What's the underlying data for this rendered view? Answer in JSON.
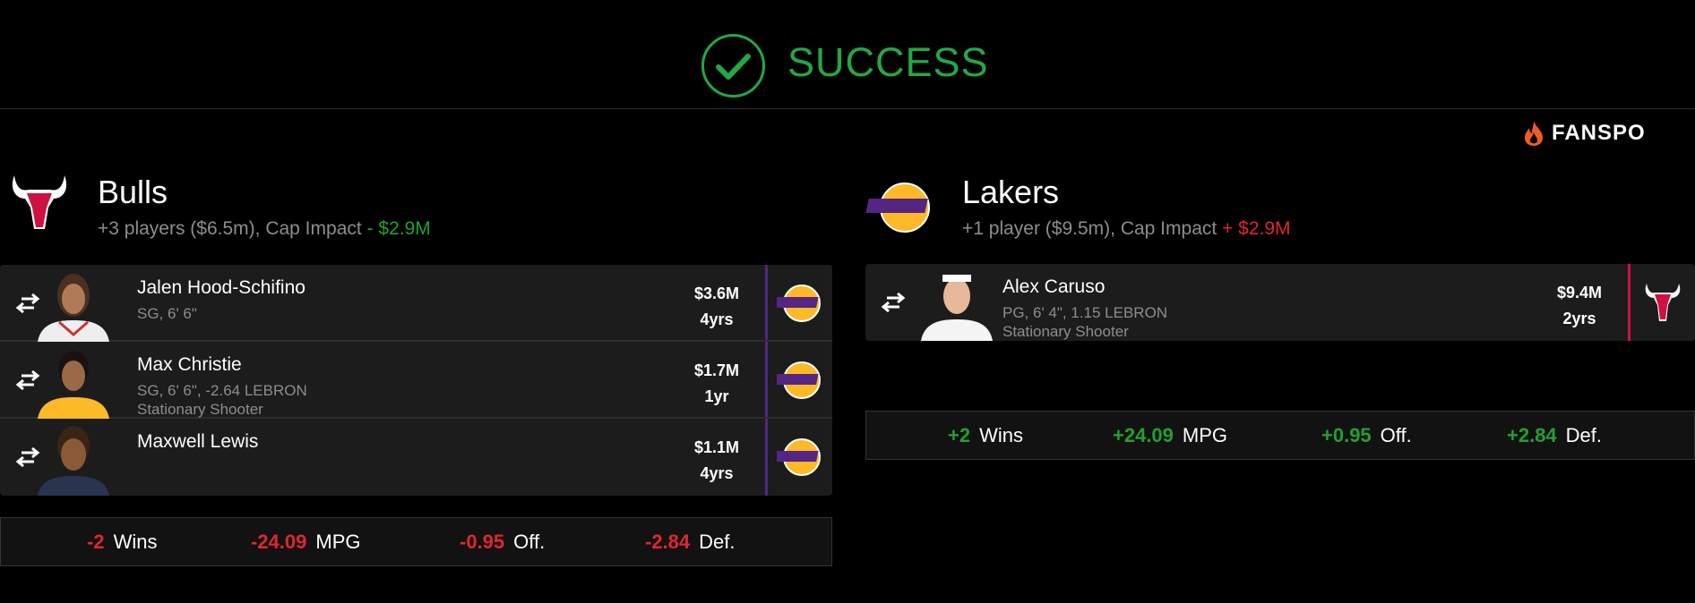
{
  "header": {
    "status": "SUCCESS",
    "status_icon": "check-circle-icon",
    "brand": "FANSPO",
    "colors": {
      "success": "#22a845",
      "positive": "#22a02f",
      "negative": "#e0262f",
      "bulls": "#ce1141",
      "lakers": "#552583"
    }
  },
  "teams": [
    {
      "name": "Bulls",
      "summary": "+3 players ($6.5m), Cap Impact",
      "cap_impact": "- $2.9M",
      "cap_dir": "negative",
      "players": [
        {
          "name": "Jalen Hood-Schifino",
          "info": "SG, 6' 6\"",
          "role": "",
          "salary": "$3.6M",
          "years": "4yrs",
          "from": "Lakers"
        },
        {
          "name": "Max Christie",
          "info": "SG, 6' 6\", -2.64 LEBRON",
          "role": "Stationary Shooter",
          "salary": "$1.7M",
          "years": "1yr",
          "from": "Lakers"
        },
        {
          "name": "Maxwell Lewis",
          "info": "",
          "role": "",
          "salary": "$1.1M",
          "years": "4yrs",
          "from": "Lakers"
        }
      ],
      "stats": [
        {
          "value": "-2",
          "label": "Wins"
        },
        {
          "value": "-24.09",
          "label": "MPG"
        },
        {
          "value": "-0.95",
          "label": "Off."
        },
        {
          "value": "-2.84",
          "label": "Def."
        }
      ]
    },
    {
      "name": "Lakers",
      "summary": "+1 player ($9.5m), Cap Impact",
      "cap_impact": "+ $2.9M",
      "cap_dir": "positive",
      "players": [
        {
          "name": "Alex Caruso",
          "info": "PG, 6' 4\", 1.15 LEBRON",
          "role": "Stationary Shooter",
          "salary": "$9.4M",
          "years": "2yrs",
          "from": "Bulls"
        }
      ],
      "stats": [
        {
          "value": "+2",
          "label": "Wins"
        },
        {
          "value": "+24.09",
          "label": "MPG"
        },
        {
          "value": "+0.95",
          "label": "Off."
        },
        {
          "value": "+2.84",
          "label": "Def."
        }
      ]
    }
  ]
}
